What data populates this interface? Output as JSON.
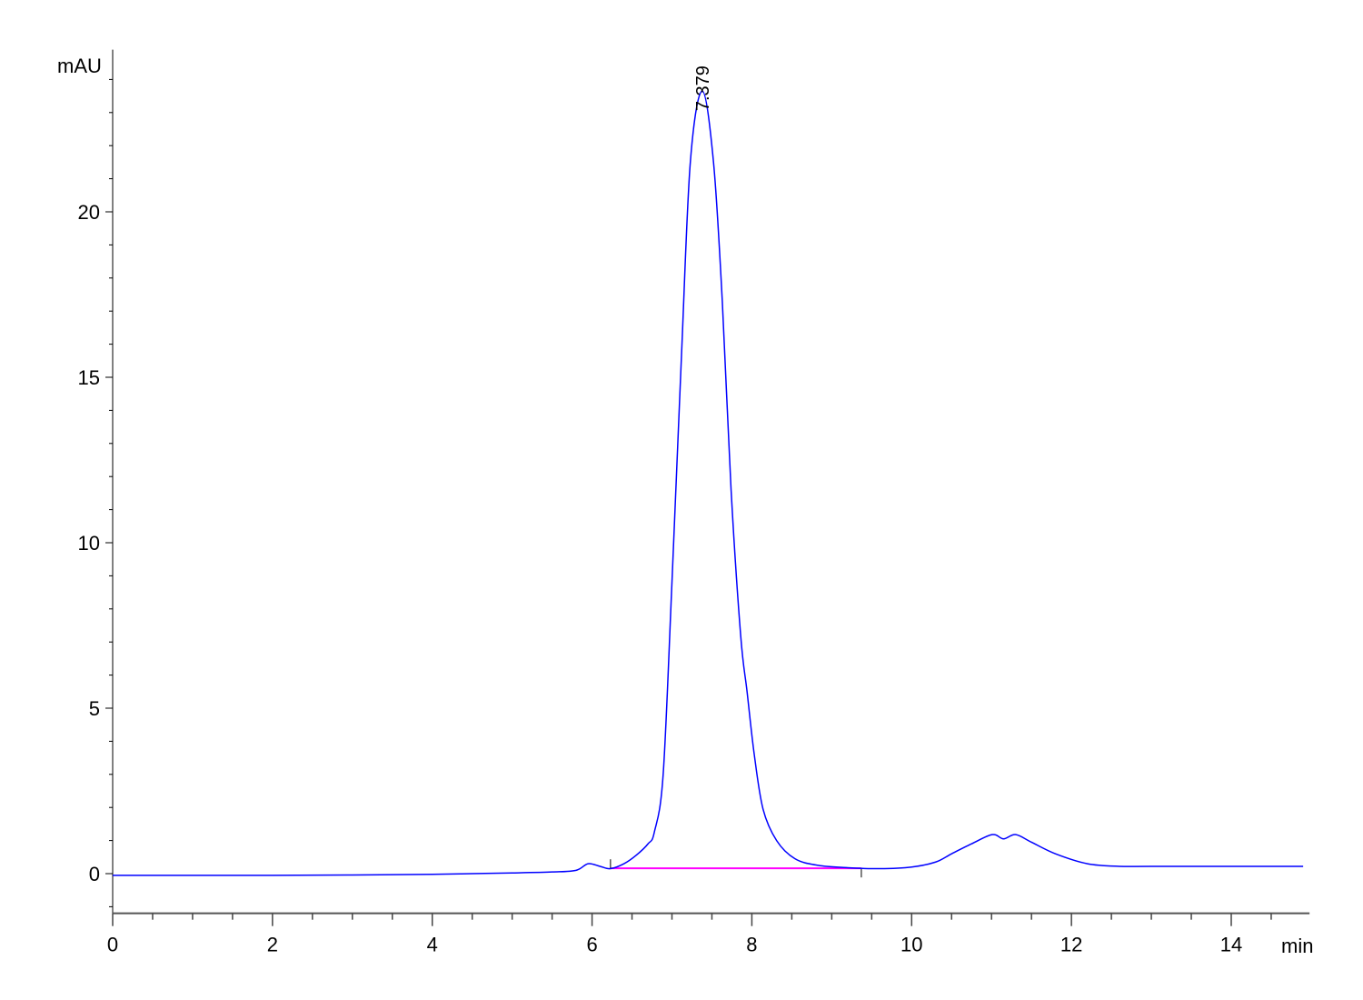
{
  "chart_data": {
    "type": "line",
    "title": "",
    "xlabel": "min",
    "ylabel": "mAU",
    "xlim": [
      0,
      14.98
    ],
    "ylim": [
      -1.2,
      24.9
    ],
    "x_ticks": [
      0,
      2,
      4,
      6,
      8,
      10,
      12,
      14
    ],
    "x_tick_labels": [
      "0",
      "2",
      "4",
      "6",
      "8",
      "10",
      "12",
      "14"
    ],
    "y_ticks": [
      0,
      5,
      10,
      15,
      20
    ],
    "y_tick_labels": [
      "0",
      "5",
      "10",
      "15",
      "20"
    ],
    "grid": false,
    "series": [
      {
        "color": "#0000ff",
        "x": [
          0,
          1,
          2,
          3,
          4,
          4.5,
          5,
          5.5,
          5.8,
          5.95,
          6.1,
          6.23,
          6.4,
          6.55,
          6.7,
          6.78,
          6.89,
          7.0,
          7.12,
          7.23,
          7.379,
          7.52,
          7.63,
          7.74,
          7.86,
          7.94,
          8.03,
          8.14,
          8.31,
          8.54,
          8.83,
          9.2,
          9.6,
          10.0,
          10.3,
          10.5,
          10.75,
          11.01,
          11.15,
          11.3,
          11.5,
          11.8,
          12.2,
          12.6,
          13.0,
          14.0,
          14.9
        ],
        "y": [
          -0.05,
          -0.05,
          -0.05,
          -0.04,
          -0.02,
          0.0,
          0.02,
          0.05,
          0.1,
          0.3,
          0.22,
          0.15,
          0.3,
          0.55,
          0.9,
          1.26,
          3.0,
          8.8,
          15.7,
          21.5,
          23.65,
          21.5,
          17.3,
          11.6,
          7.2,
          5.5,
          3.6,
          1.95,
          1.0,
          0.45,
          0.25,
          0.18,
          0.15,
          0.2,
          0.35,
          0.6,
          0.9,
          1.18,
          1.05,
          1.18,
          0.95,
          0.6,
          0.3,
          0.22,
          0.22,
          0.22,
          0.22
        ]
      }
    ],
    "peak_annotations": [
      {
        "label": "7.379",
        "x": 7.379,
        "y": 23.65
      }
    ],
    "integration_baseline": {
      "color": "#ff00ff",
      "x": [
        6.23,
        9.37
      ],
      "y": [
        0.16,
        0.16
      ]
    }
  }
}
